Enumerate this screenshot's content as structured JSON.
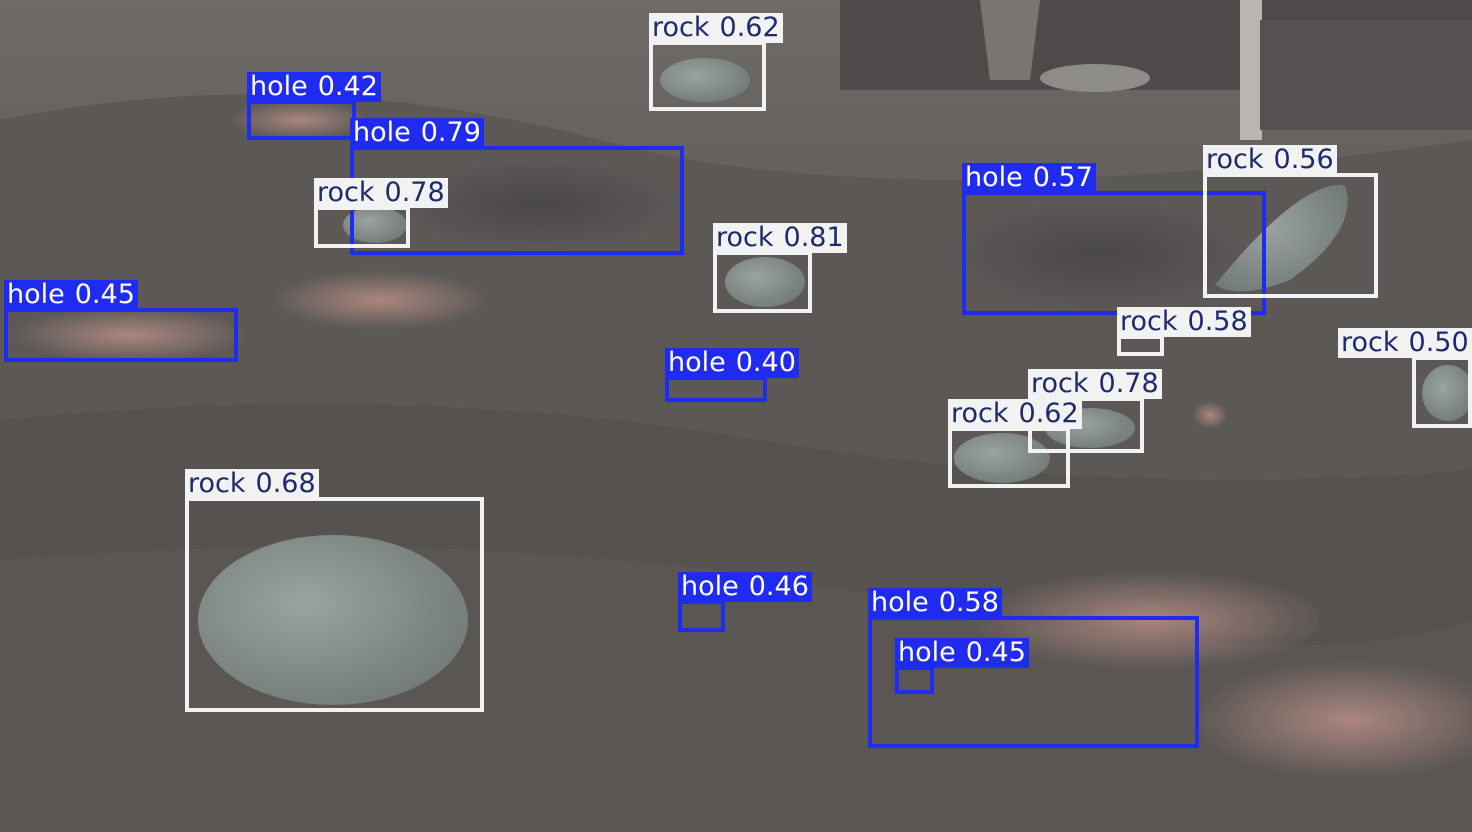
{
  "image": {
    "description_colors": {
      "sand": "#5d5a58",
      "sand_light": "#8b8582",
      "pink_patch": "#b78f86",
      "rock": "#8c9490",
      "hole_box": "#1f2bf0",
      "rock_box": "#f2f2f2",
      "rock_label_text": "#1e2a6b"
    }
  },
  "detections": [
    {
      "id": "d1",
      "cls": "rock",
      "score": "0.62"
    },
    {
      "id": "d2",
      "cls": "hole",
      "score": "0.42"
    },
    {
      "id": "d3",
      "cls": "hole",
      "score": "0.79"
    },
    {
      "id": "d4",
      "cls": "rock",
      "score": "0.78"
    },
    {
      "id": "d5",
      "cls": "rock",
      "score": "0.81"
    },
    {
      "id": "d6",
      "cls": "hole",
      "score": "0.57"
    },
    {
      "id": "d7",
      "cls": "rock",
      "score": "0.56"
    },
    {
      "id": "d8",
      "cls": "hole",
      "score": "0.45"
    },
    {
      "id": "d9",
      "cls": "hole",
      "score": "0.40"
    },
    {
      "id": "d10",
      "cls": "rock",
      "score": "0.58"
    },
    {
      "id": "d11",
      "cls": "rock",
      "score": "0.50"
    },
    {
      "id": "d12",
      "cls": "rock",
      "score": "0.78"
    },
    {
      "id": "d13",
      "cls": "rock",
      "score": "0.62"
    },
    {
      "id": "d14",
      "cls": "rock",
      "score": "0.68"
    },
    {
      "id": "d15",
      "cls": "hole",
      "score": "0.46"
    },
    {
      "id": "d16",
      "cls": "hole",
      "score": "0.58"
    },
    {
      "id": "d17",
      "cls": "hole",
      "score": "0.45"
    }
  ]
}
